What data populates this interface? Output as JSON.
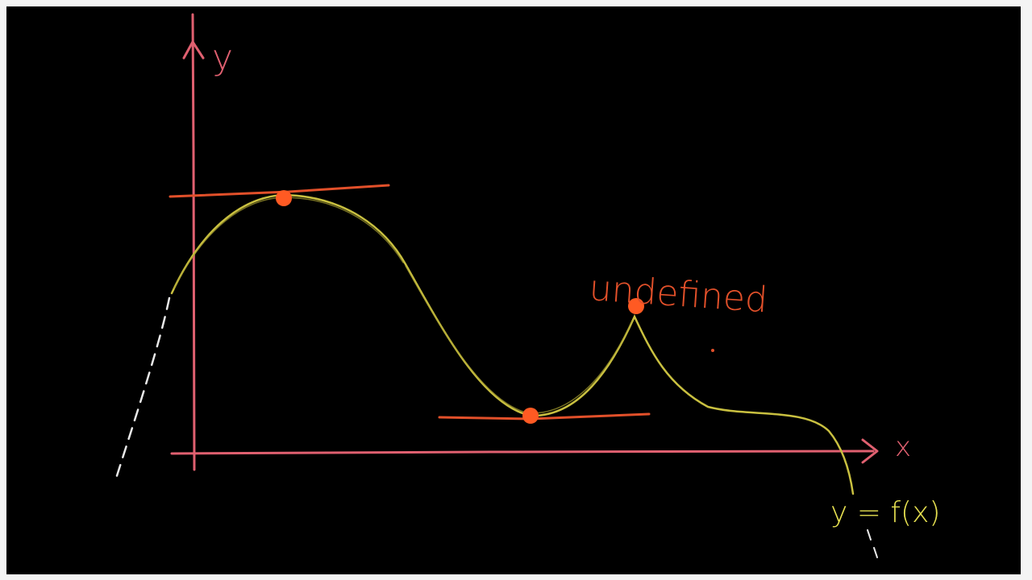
{
  "colors": {
    "background": "#000000",
    "frame": "#f4f4f4",
    "axes": "#e06070",
    "curve": "#c9c040",
    "tangent": "#e2502a",
    "point": "#ff5a23",
    "annotation": "#e2502a",
    "function_label": "#e6e050"
  },
  "labels": {
    "y_axis": "y",
    "x_axis": "x",
    "undefined": "undefined",
    "function": "y = f(x)"
  },
  "icons": {
    "y_arrow": "arrow-up-icon",
    "x_arrow": "arrow-right-icon"
  }
}
